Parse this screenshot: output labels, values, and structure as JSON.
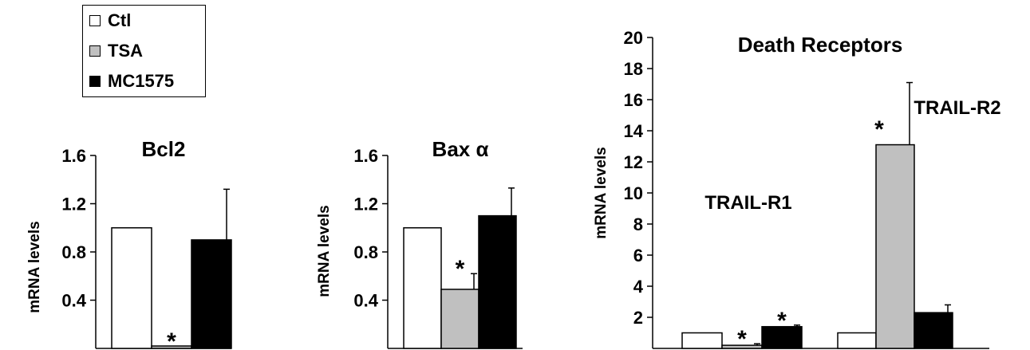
{
  "legend": {
    "items": [
      {
        "label": "Ctl",
        "color": "#ffffff"
      },
      {
        "label": "TSA",
        "color": "#c0c0c0"
      },
      {
        "label": "MC1575",
        "color": "#000000"
      }
    ]
  },
  "chart_data": [
    {
      "type": "bar",
      "title": "Bcl2",
      "ylabel": "mRNA levels",
      "ylim": [
        0,
        1.6
      ],
      "yticks": [
        "0.4",
        "0.8",
        "1.2",
        "1.6"
      ],
      "categories": [
        "Bcl2"
      ],
      "series": [
        {
          "name": "Ctl",
          "values": [
            1.0
          ],
          "err": [
            0
          ]
        },
        {
          "name": "TSA",
          "values": [
            0.02
          ],
          "err": [
            0
          ]
        },
        {
          "name": "MC1575",
          "values": [
            0.9
          ],
          "err": [
            0.42
          ]
        }
      ],
      "annotations": [
        {
          "text": "*",
          "series": "TSA",
          "category": 0
        }
      ]
    },
    {
      "type": "bar",
      "title": "Bax α",
      "ylabel": "mRNA levels",
      "ylim": [
        0,
        1.6
      ],
      "yticks": [
        "0.4",
        "0.8",
        "1.2",
        "1.6"
      ],
      "categories": [
        "Bax α"
      ],
      "series": [
        {
          "name": "Ctl",
          "values": [
            1.0
          ],
          "err": [
            0
          ]
        },
        {
          "name": "TSA",
          "values": [
            0.49
          ],
          "err": [
            0.13
          ]
        },
        {
          "name": "MC1575",
          "values": [
            1.1
          ],
          "err": [
            0.23
          ]
        }
      ],
      "annotations": [
        {
          "text": "*",
          "series": "TSA",
          "category": 0
        }
      ]
    },
    {
      "type": "bar",
      "title": "Death Receptors",
      "ylabel": "mRNA levels",
      "ylim": [
        0,
        20
      ],
      "yticks": [
        "2",
        "4",
        "6",
        "8",
        "10",
        "12",
        "14",
        "16",
        "18",
        "20"
      ],
      "categories": [
        "TRAIL-R1",
        "TRAIL-R2"
      ],
      "series": [
        {
          "name": "Ctl",
          "values": [
            1.0,
            1.0
          ],
          "err": [
            0,
            0
          ]
        },
        {
          "name": "TSA",
          "values": [
            0.2,
            13.1
          ],
          "err": [
            0.1,
            4.0
          ]
        },
        {
          "name": "MC1575",
          "values": [
            1.4,
            2.3
          ],
          "err": [
            0.1,
            0.5
          ]
        }
      ],
      "annotations": [
        {
          "text": "*",
          "series": "TSA",
          "category": 0
        },
        {
          "text": "*",
          "series": "MC1575",
          "category": 0
        },
        {
          "text": "*",
          "series": "TSA",
          "category": 1
        }
      ]
    }
  ]
}
